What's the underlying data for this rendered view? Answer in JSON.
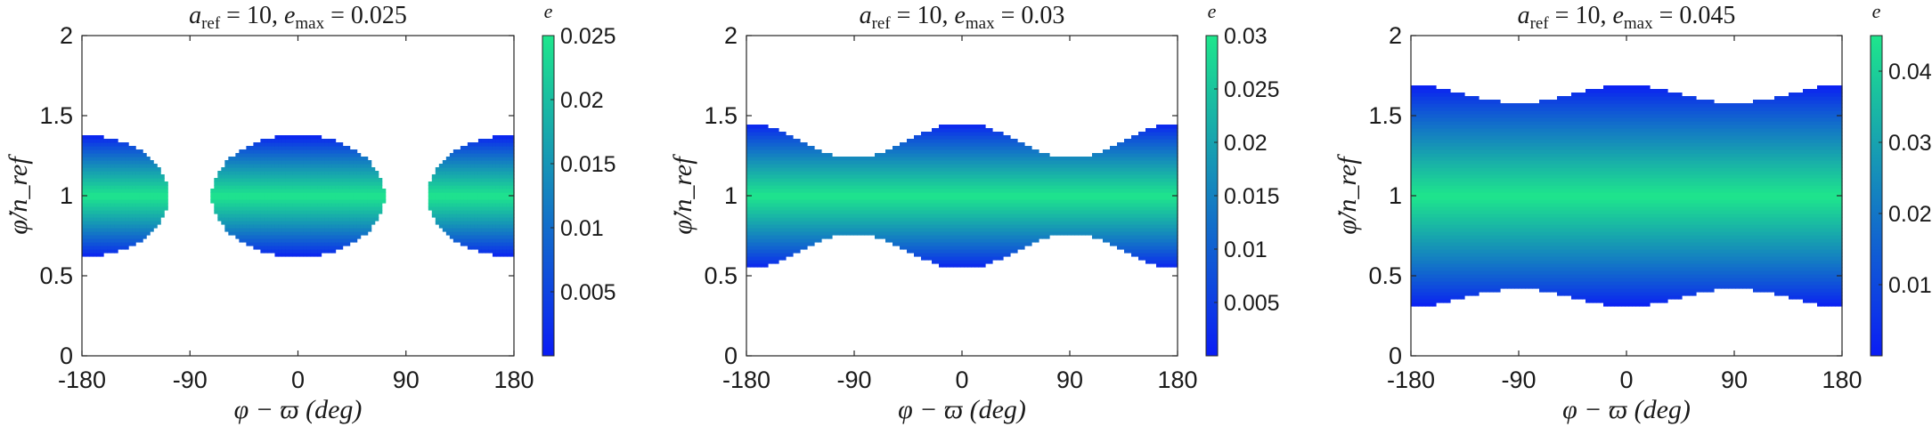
{
  "chart_data": [
    {
      "type": "heatmap",
      "title": "a_ref = 10, e_max = 0.025",
      "title_parts": {
        "a": "a",
        "a_sub": "ref",
        "a_val": " = 10, ",
        "e": "e",
        "e_sub": "max",
        "e_val": " = 0.025"
      },
      "xlabel": "φ − ϖ (deg)",
      "ylabel": "φ̇/n_ref",
      "xlim": [
        -180,
        180
      ],
      "ylim": [
        0,
        2
      ],
      "xticks": [
        "-180",
        "-90",
        "0",
        "90",
        "180"
      ],
      "yticks": [
        "0",
        "0.5",
        "1",
        "1.5",
        "2"
      ],
      "colorbar_label": "e",
      "colorbar_range": [
        0,
        0.025
      ],
      "colorbar_ticks": [
        "0.005",
        "0.01",
        "0.015",
        "0.02",
        "0.025"
      ],
      "shape": "lens",
      "half_width_max": 0.38,
      "lens_edge": 0.8
    },
    {
      "type": "heatmap",
      "title": "a_ref = 10, e_max = 0.03",
      "title_parts": {
        "a": "a",
        "a_sub": "ref",
        "a_val": " = 10, ",
        "e": "e",
        "e_sub": "max",
        "e_val": " = 0.03"
      },
      "xlabel": "φ − ϖ (deg)",
      "ylabel": "φ̇/n_ref",
      "xlim": [
        -180,
        180
      ],
      "ylim": [
        0,
        2
      ],
      "xticks": [
        "-180",
        "-90",
        "0",
        "90",
        "180"
      ],
      "yticks": [
        "0",
        "0.5",
        "1",
        "1.5",
        "2"
      ],
      "colorbar_label": "e",
      "colorbar_range": [
        0,
        0.03
      ],
      "colorbar_ticks": [
        "0.005",
        "0.01",
        "0.015",
        "0.02",
        "0.025",
        "0.03"
      ],
      "shape": "band",
      "half_width_max": 0.455,
      "half_width_min": 0.235
    },
    {
      "type": "heatmap",
      "title": "a_ref = 10, e_max = 0.045",
      "title_parts": {
        "a": "a",
        "a_sub": "ref",
        "a_val": " = 10, ",
        "e": "e",
        "e_sub": "max",
        "e_val": " = 0.045"
      },
      "xlabel": "φ − ϖ (deg)",
      "ylabel": "φ̇/n_ref",
      "xlim": [
        -180,
        180
      ],
      "ylim": [
        0,
        2
      ],
      "xticks": [
        "-180",
        "-90",
        "0",
        "90",
        "180"
      ],
      "yticks": [
        "0",
        "0.5",
        "1",
        "1.5",
        "2"
      ],
      "colorbar_label": "e",
      "colorbar_range": [
        0,
        0.045
      ],
      "colorbar_ticks": [
        "0.01",
        "0.02",
        "0.03",
        "0.04"
      ],
      "shape": "band",
      "half_width_max": 0.69,
      "half_width_min": 0.58
    }
  ],
  "colors": {
    "colormap_low": "#0a1cf5",
    "colormap_high": "#1ee68c",
    "axis": "#262626",
    "background": "#ffffff"
  }
}
